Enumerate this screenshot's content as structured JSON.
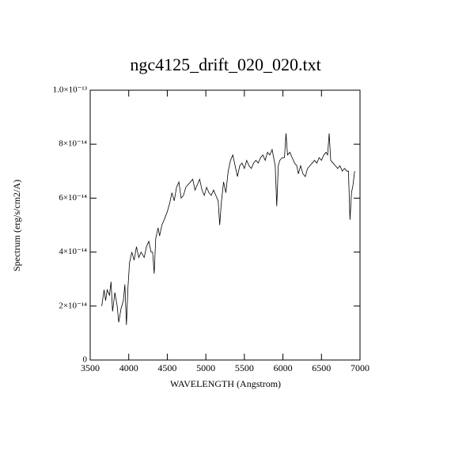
{
  "chart_data": {
    "type": "line",
    "title": "ngc4125_drift_020_020.txt",
    "x_label": "WAVELENGTH (Angstrom)",
    "y_label": "Spectrum (erg/s/cm2/A)",
    "xlim": [
      3500,
      7000
    ],
    "ylim": [
      0,
      1e-13
    ],
    "xticks": [
      3500,
      4000,
      4500,
      5000,
      5500,
      6000,
      6500,
      7000
    ],
    "yticks": [
      0,
      {
        "value": 2e-14,
        "label": "2×10⁻¹⁴"
      },
      {
        "value": 4e-14,
        "label": "4×10⁻¹⁴"
      },
      {
        "value": 6e-14,
        "label": "6×10⁻¹⁴"
      },
      {
        "value": 8e-14,
        "label": "8×10⁻¹⁴"
      },
      {
        "value": 1e-13,
        "label": "1.0×10⁻¹³"
      }
    ],
    "color": "#000000",
    "x": [
      3650,
      3680,
      3700,
      3720,
      3750,
      3770,
      3790,
      3820,
      3850,
      3870,
      3900,
      3930,
      3950,
      3970,
      3990,
      4010,
      4040,
      4070,
      4100,
      4130,
      4160,
      4200,
      4230,
      4260,
      4290,
      4310,
      4330,
      4350,
      4380,
      4400,
      4430,
      4460,
      4500,
      4530,
      4560,
      4590,
      4620,
      4650,
      4680,
      4710,
      4740,
      4770,
      4800,
      4830,
      4860,
      4890,
      4920,
      4950,
      4980,
      5010,
      5040,
      5070,
      5100,
      5130,
      5160,
      5180,
      5200,
      5230,
      5260,
      5290,
      5320,
      5350,
      5380,
      5410,
      5440,
      5470,
      5500,
      5530,
      5560,
      5590,
      5620,
      5650,
      5680,
      5710,
      5740,
      5770,
      5800,
      5830,
      5860,
      5880,
      5900,
      5920,
      5940,
      5960,
      5990,
      6020,
      6040,
      6060,
      6090,
      6120,
      6150,
      6180,
      6200,
      6230,
      6260,
      6290,
      6320,
      6350,
      6380,
      6410,
      6440,
      6470,
      6500,
      6530,
      6560,
      6580,
      6600,
      6620,
      6650,
      6680,
      6710,
      6740,
      6770,
      6800,
      6830,
      6850,
      6870,
      6890,
      6910,
      6930
    ],
    "values": [
      2e-14,
      2.6e-14,
      2.2e-14,
      2.6e-14,
      2.4e-14,
      2.9e-14,
      1.8e-14,
      2.5e-14,
      2e-14,
      1.4e-14,
      1.9e-14,
      2.2e-14,
      2.8e-14,
      1.3e-14,
      2.7e-14,
      3.6e-14,
      4e-14,
      3.7e-14,
      4.2e-14,
      3.8e-14,
      4e-14,
      3.8e-14,
      4.2e-14,
      4.4e-14,
      4e-14,
      4e-14,
      3.2e-14,
      4.5e-14,
      4.9e-14,
      4.6e-14,
      5e-14,
      5.2e-14,
      5.5e-14,
      5.8e-14,
      6.2e-14,
      5.9e-14,
      6.4e-14,
      6.6e-14,
      6e-14,
      6.1e-14,
      6.4e-14,
      6.5e-14,
      6.6e-14,
      6.7e-14,
      6.3e-14,
      6.5e-14,
      6.7e-14,
      6.3e-14,
      6.1e-14,
      6.4e-14,
      6.2e-14,
      6.1e-14,
      6.3e-14,
      6.1e-14,
      5.9e-14,
      5e-14,
      5.8e-14,
      6.6e-14,
      6.2e-14,
      7e-14,
      7.4e-14,
      7.6e-14,
      7.2e-14,
      6.8e-14,
      7.2e-14,
      7.3e-14,
      7.1e-14,
      7.4e-14,
      7.2e-14,
      7.1e-14,
      7.3e-14,
      7.4e-14,
      7.3e-14,
      7.5e-14,
      7.6e-14,
      7.4e-14,
      7.7e-14,
      7.6e-14,
      7.8e-14,
      7.5e-14,
      7.2e-14,
      5.7e-14,
      7.2e-14,
      7.4e-14,
      7.5e-14,
      7.5e-14,
      8.4e-14,
      7.6e-14,
      7.7e-14,
      7.5e-14,
      7.3e-14,
      7.2e-14,
      6.9e-14,
      7.2e-14,
      6.9e-14,
      6.8e-14,
      7.1e-14,
      7.2e-14,
      7.3e-14,
      7.4e-14,
      7.3e-14,
      7.5e-14,
      7.4e-14,
      7.6e-14,
      7.7e-14,
      7.6e-14,
      8.4e-14,
      7.4e-14,
      7.3e-14,
      7.2e-14,
      7.1e-14,
      7.2e-14,
      7e-14,
      7.1e-14,
      7e-14,
      7e-14,
      5.2e-14,
      6.2e-14,
      6.5e-14,
      7e-14
    ]
  }
}
